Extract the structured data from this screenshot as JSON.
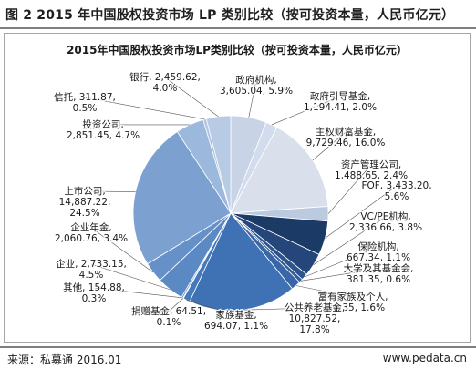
{
  "figure": {
    "title": "图 2 2015 年中国股权投资市场 LP 类别比较（按可投资本量，人民币亿元）",
    "source": "来源：私募通 2016.01",
    "website": "www.pedata.cn"
  },
  "chart_data": {
    "type": "pie",
    "title": "2015年中国股权投资市场LP类别比较（按可投资本量，人民币亿元）",
    "unit": "人民币亿元",
    "slices": [
      {
        "name": "政府机构",
        "value": 3605.04,
        "percent": 5.9,
        "label": [
          "政府机构,",
          "3,605.04, 5.9%"
        ],
        "color": "#c8d3e6"
      },
      {
        "name": "政府引导基金",
        "value": 1194.41,
        "percent": 2.0,
        "label": [
          "政府引导基金,",
          "1,194.41, 2.0%"
        ],
        "color": "#d3dced"
      },
      {
        "name": "主权财富基金",
        "value": 9729.46,
        "percent": 16.0,
        "label": [
          "主权财富基金,",
          "9,729.46, 16.0%"
        ],
        "color": "#d9e0ec"
      },
      {
        "name": "资产管理公司",
        "value": 1488.65,
        "percent": 2.4,
        "label": [
          "资产管理公司,",
          "1,488.65, 2.4%"
        ],
        "color": "#bccae0"
      },
      {
        "name": "FOF",
        "value": 3433.2,
        "percent": 5.6,
        "label": [
          "FOF, 3,433.20,",
          "5.6%"
        ],
        "color": "#1c3a66"
      },
      {
        "name": "VC/PE机构",
        "value": 2336.66,
        "percent": 3.8,
        "label": [
          "VC/PE机构,",
          "2,336.66, 3.8%"
        ],
        "color": "#24467a"
      },
      {
        "name": "保险机构",
        "value": 667.34,
        "percent": 1.1,
        "label": [
          "保险机构,",
          "667.34, 1.1%"
        ],
        "color": "#2c548e"
      },
      {
        "name": "大学及其基金会",
        "value": 381.35,
        "percent": 0.6,
        "label": [
          "大学及其基金会,",
          "381.35, 0.6%"
        ],
        "color": "#335d9a"
      },
      {
        "name": "富有家族及个人",
        "value": 974.35,
        "percent": 1.6,
        "label": [
          "富有家族及个人,",
          "974.35, 1.6%"
        ],
        "color": "#3866a6"
      },
      {
        "name": "公共养老基金",
        "value": 10827.52,
        "percent": 17.8,
        "label": [
          "公共养老基金,",
          "10,827.52,",
          "17.8%"
        ],
        "color": "#3f72b4"
      },
      {
        "name": "家族基金",
        "value": 694.07,
        "percent": 1.1,
        "label": [
          "家族基金,",
          "694.07, 1.1%"
        ],
        "color": "#4679ba"
      },
      {
        "name": "捐赠基金",
        "value": 64.51,
        "percent": 0.1,
        "label": [
          "捐赠基金, 64.51,",
          "0.1%"
        ],
        "color": "#4b7dbd"
      },
      {
        "name": "其他",
        "value": 154.88,
        "percent": 0.3,
        "label": [
          "其他, 154.88,",
          "0.3%"
        ],
        "color": "#5182c0"
      },
      {
        "name": "企业",
        "value": 2733.15,
        "percent": 4.5,
        "label": [
          "企业, 2,733.15,",
          "4.5%"
        ],
        "color": "#5a89c4"
      },
      {
        "name": "企业年金",
        "value": 2060.76,
        "percent": 3.4,
        "label": [
          "企业年金,",
          "2,060.76, 3.4%"
        ],
        "color": "#6591c8"
      },
      {
        "name": "上市公司",
        "value": 14887.22,
        "percent": 24.5,
        "label": [
          "上市公司,",
          "14,887.22,",
          "24.5%"
        ],
        "color": "#7ca1d1"
      },
      {
        "name": "投资公司",
        "value": 2851.45,
        "percent": 4.7,
        "label": [
          "投资公司,",
          "2,851.45, 4.7%"
        ],
        "color": "#9db8dd"
      },
      {
        "name": "信托",
        "value": 311.87,
        "percent": 0.5,
        "label": [
          "信托, 311.87,",
          "0.5%"
        ],
        "color": "#aec3e2"
      },
      {
        "name": "银行",
        "value": 2459.62,
        "percent": 4.0,
        "label": [
          "银行, 2,459.62,",
          "4.0%"
        ],
        "color": "#b8cbe5"
      }
    ],
    "legend": "none",
    "labels": "outside with leader lines"
  }
}
